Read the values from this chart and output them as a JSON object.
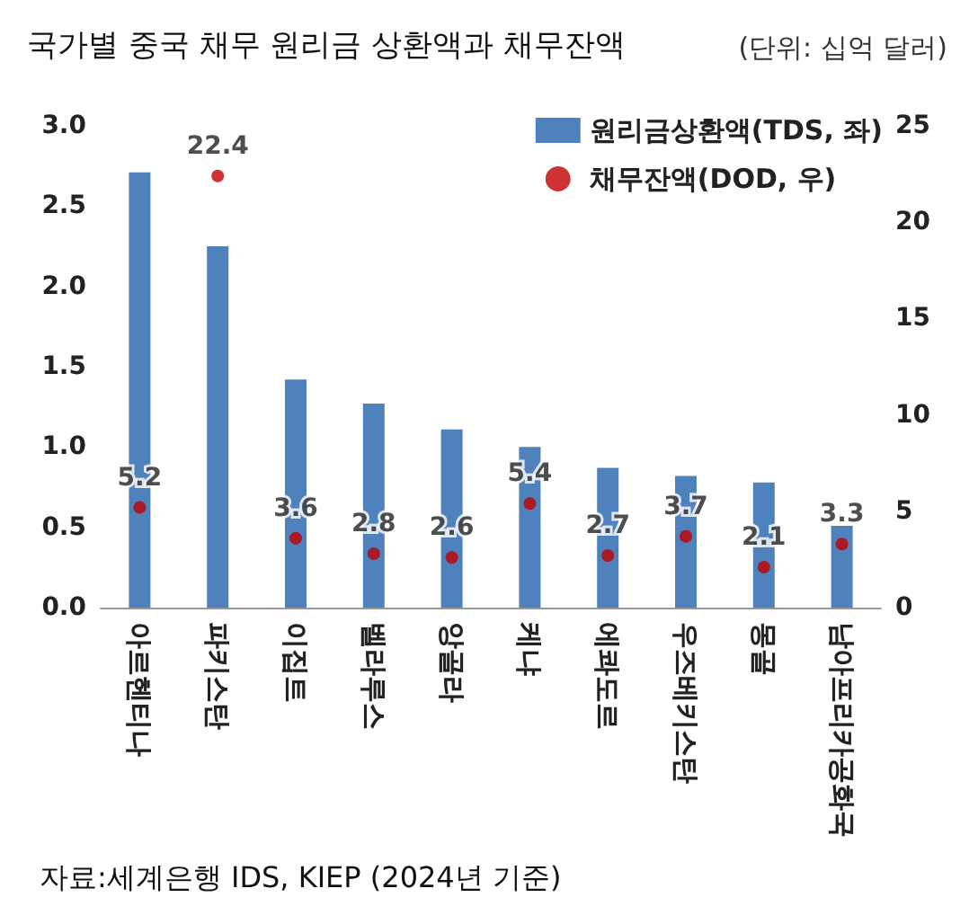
{
  "chart_data": {
    "type": "bar",
    "title": "국가별 중국 채무 원리금 상환액과 채무잔액",
    "subtitle": "(단위: 십억 달러)",
    "categories": [
      "아르헨티나",
      "파키스탄",
      "이집트",
      "벨라루스",
      "앙골라",
      "케냐",
      "에콰도르",
      "우즈베키스탄",
      "몽골",
      "남아프리카공화국"
    ],
    "series": [
      {
        "name": "원리금상환액(TDS, 좌)",
        "color": "#4f81bd",
        "values": [
          2.71,
          2.25,
          1.42,
          1.27,
          1.11,
          1.0,
          0.87,
          0.82,
          0.78,
          0.51
        ]
      },
      {
        "name": "채무잔액(DOD, 우)",
        "type": "scatter",
        "axis": "y2",
        "color": "#c00000",
        "marker": "circle",
        "values": [
          5.2,
          22.4,
          3.6,
          2.8,
          2.6,
          5.4,
          2.7,
          3.7,
          2.1,
          3.3
        ],
        "value_labels": [
          "5.2",
          "22.4",
          "3.6",
          "2.8",
          "2.6",
          "5.4",
          "2.7",
          "3.7",
          "2.1",
          "3.3"
        ]
      }
    ],
    "ylim": [
      0,
      3
    ],
    "yticks": [
      {
        "value": 0,
        "label": "0.0"
      },
      {
        "value": 0.5,
        "label": "0.5"
      },
      {
        "value": 1,
        "label": "1.0"
      },
      {
        "value": 1.5,
        "label": "1.5"
      },
      {
        "value": 2,
        "label": "2.0"
      },
      {
        "value": 2.5,
        "label": "2.5"
      },
      {
        "value": 3,
        "label": "3.0"
      }
    ],
    "y2lim": [
      0,
      25
    ],
    "y2ticks": [
      0,
      5,
      10,
      15,
      20,
      25
    ],
    "grid": false,
    "legend": "top right",
    "annotations": [
      "자료:세계은행 IDS, KIEP (2024년 기준)"
    ]
  }
}
